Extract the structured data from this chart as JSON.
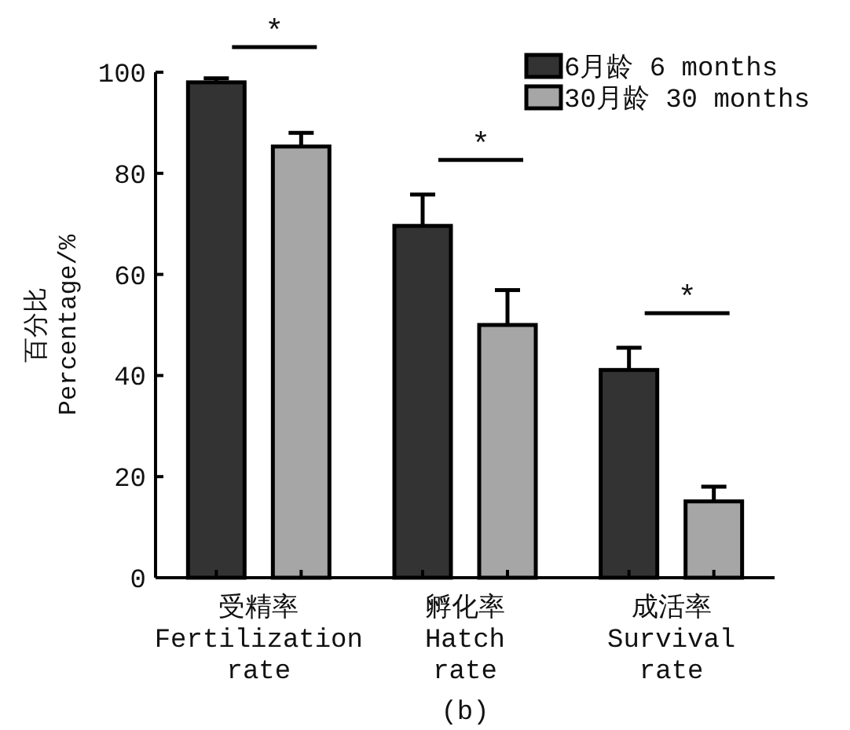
{
  "chart_data": {
    "type": "bar",
    "ylabel": "百分比\nPercentage/%",
    "categories": [
      "受精率\nFertilization\nrate",
      "孵化率\nHatch\nrate",
      "成活率\nSurvival\nrate"
    ],
    "series": [
      {
        "name": "6月龄 6 months",
        "color": "#333333",
        "values": [
          98.0,
          69.6,
          41.1
        ],
        "errors": [
          0.8,
          6.2,
          4.4
        ]
      },
      {
        "name": "30月龄 30 months",
        "color": "#a6a6a6",
        "values": [
          85.3,
          50.0,
          15.1
        ],
        "errors": [
          2.7,
          6.9,
          2.9
        ]
      }
    ],
    "ylim": [
      0,
      100
    ],
    "yticks": [
      0,
      20,
      40,
      60,
      80,
      100
    ],
    "grid": false,
    "legend": "top right",
    "annotations": [
      "*",
      "*",
      "*",
      "(b)"
    ]
  }
}
